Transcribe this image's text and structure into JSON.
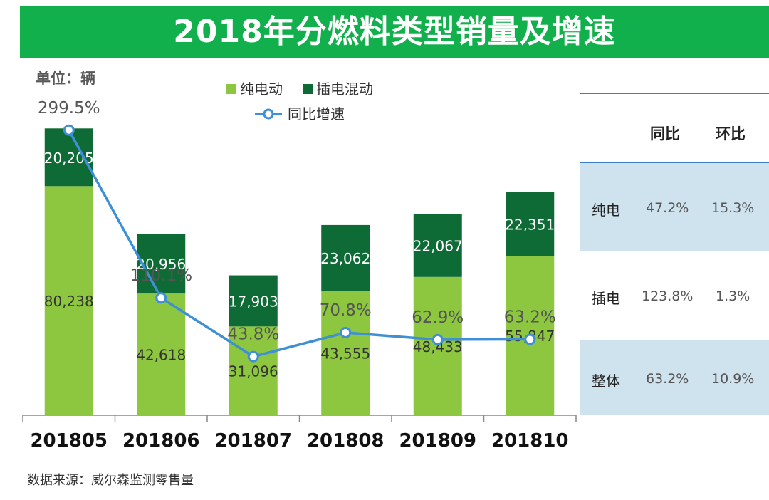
{
  "title": "2018年分燃料类型销量及增速",
  "unit_label": "单位：辆",
  "source": "数据来源：威尔森监测零售量",
  "chart_data": {
    "type": "bar",
    "stacked": true,
    "categories": [
      "201805",
      "201806",
      "201807",
      "201808",
      "201809",
      "201810"
    ],
    "series": [
      {
        "name": "纯电动",
        "color": "#8dc63f",
        "values": [
          80238,
          42618,
          31096,
          43555,
          48433,
          55847
        ],
        "labels": [
          "80,238",
          "42,618",
          "31,096",
          "43,555",
          "48,433",
          "55,847"
        ]
      },
      {
        "name": "插电混动",
        "color": "#0f6b35",
        "values": [
          20205,
          20956,
          17903,
          23062,
          22067,
          22351
        ],
        "labels": [
          "20,205",
          "20,956",
          "17,903",
          "23,062",
          "22,067",
          "22,351"
        ]
      }
    ],
    "line": {
      "name": "同比增速",
      "color": "#3f8fd6",
      "values": [
        299.5,
        110.1,
        43.8,
        70.8,
        62.9,
        63.2
      ],
      "labels": [
        "299.5%",
        "110.1%",
        "43.8%",
        "70.8%",
        "62.9%",
        "63.2%"
      ]
    },
    "ylim": [
      0,
      108000
    ],
    "line_ylim": [
      0,
      350
    ]
  },
  "table": {
    "headers": [
      "",
      "同比",
      "环比"
    ],
    "rows": [
      {
        "label": "纯电",
        "yoy": "47.2%",
        "mom": "15.3%"
      },
      {
        "label": "插电",
        "yoy": "123.8%",
        "mom": "1.3%"
      },
      {
        "label": "整体",
        "yoy": "63.2%",
        "mom": "10.9%"
      }
    ]
  }
}
